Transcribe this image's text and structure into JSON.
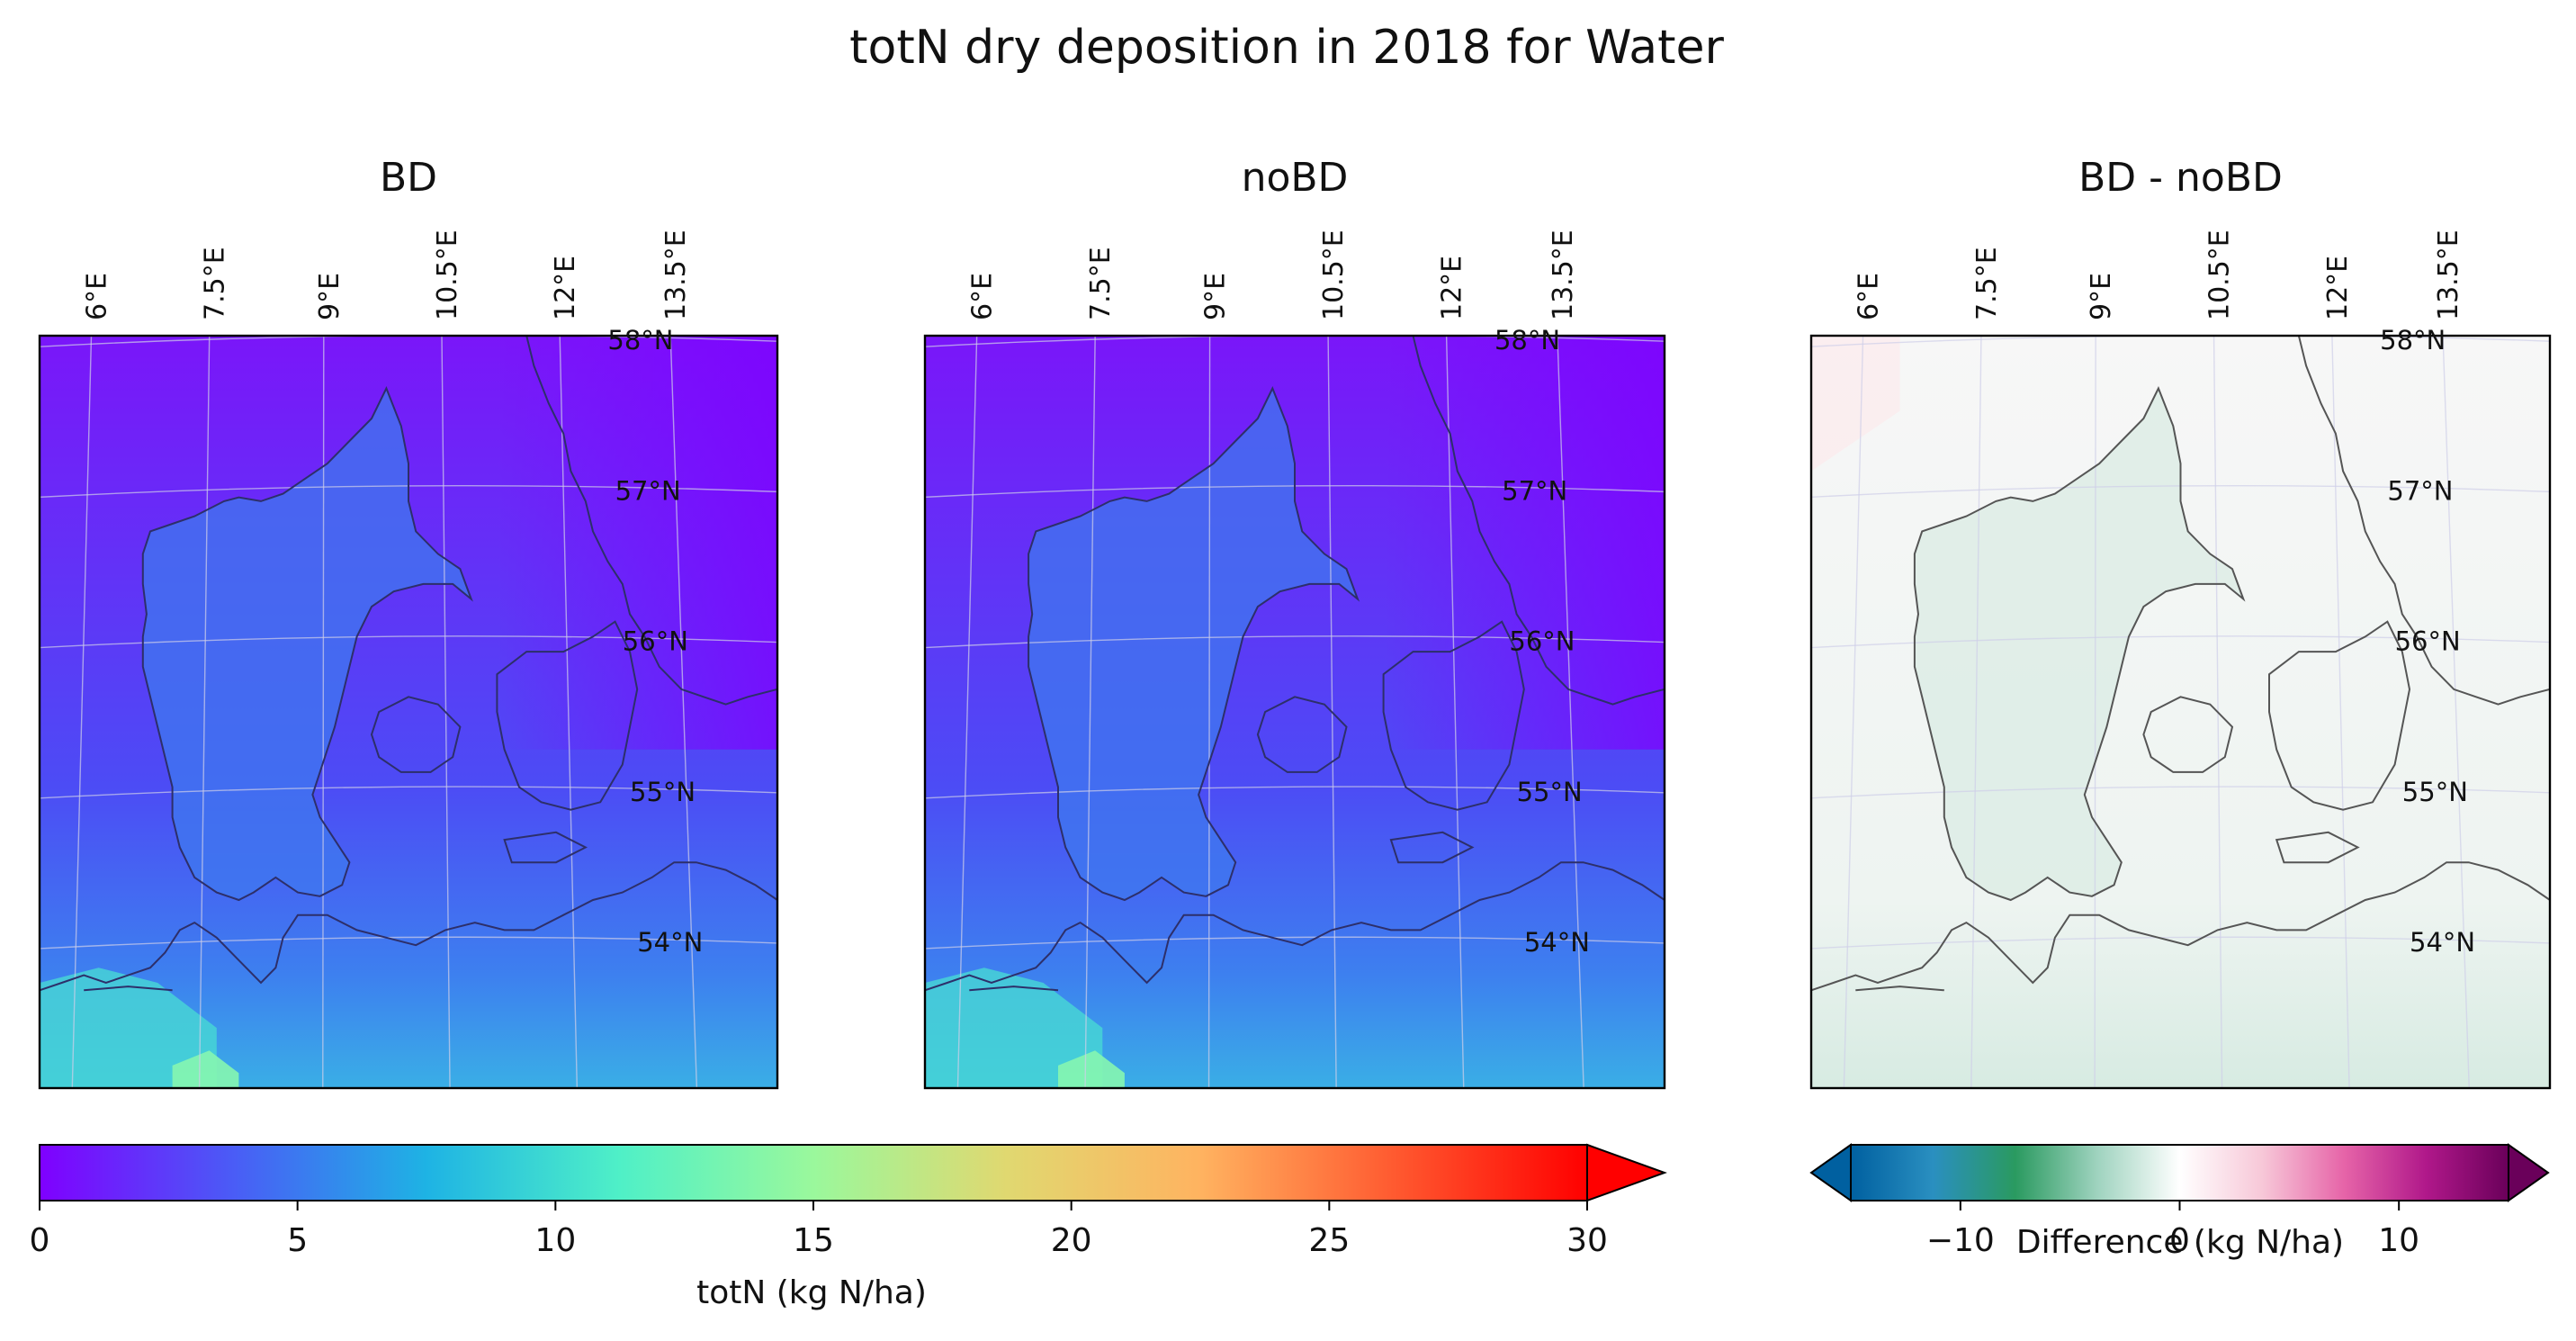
{
  "figure": {
    "title": "totN dry deposition in 2018 for Water"
  },
  "panels": [
    {
      "id": "bd",
      "title": "BD",
      "type": "abs"
    },
    {
      "id": "nobd",
      "title": "noBD",
      "type": "abs"
    },
    {
      "id": "diff",
      "title": "BD - noBD",
      "type": "diff"
    }
  ],
  "map": {
    "lon_ticks": [
      "6°E",
      "7.5°E",
      "9°E",
      "10.5°E",
      "12°E",
      "13.5°E"
    ],
    "lat_ticks": [
      "58°N",
      "57°N",
      "56°N",
      "55°N",
      "54°N"
    ]
  },
  "colorbars": {
    "abs": {
      "label": "totN (kg N/ha)",
      "ticks": [
        "0",
        "5",
        "10",
        "15",
        "20",
        "25",
        "30"
      ],
      "tick_values": [
        0,
        5,
        10,
        15,
        20,
        25,
        30
      ],
      "range": [
        0,
        30
      ],
      "extend": "max",
      "colors": [
        "#7f00ff",
        "#4a5cf6",
        "#1eb3e4",
        "#4ff0c7",
        "#9af89c",
        "#e0d870",
        "#ffb360",
        "#ff5a30",
        "#ff0000"
      ]
    },
    "diff": {
      "label": "Difference (kg N/ha)",
      "ticks": [
        "−10",
        "0",
        "10"
      ],
      "tick_values": [
        -10,
        0,
        10
      ],
      "range": [
        -15,
        15
      ],
      "extend": "both",
      "colors": [
        "#0060a0",
        "#2a8fc0",
        "#2a9a60",
        "#9fd3bf",
        "#ffffff",
        "#f7c8d8",
        "#e664a8",
        "#b0188a",
        "#6a005a"
      ]
    }
  }
}
